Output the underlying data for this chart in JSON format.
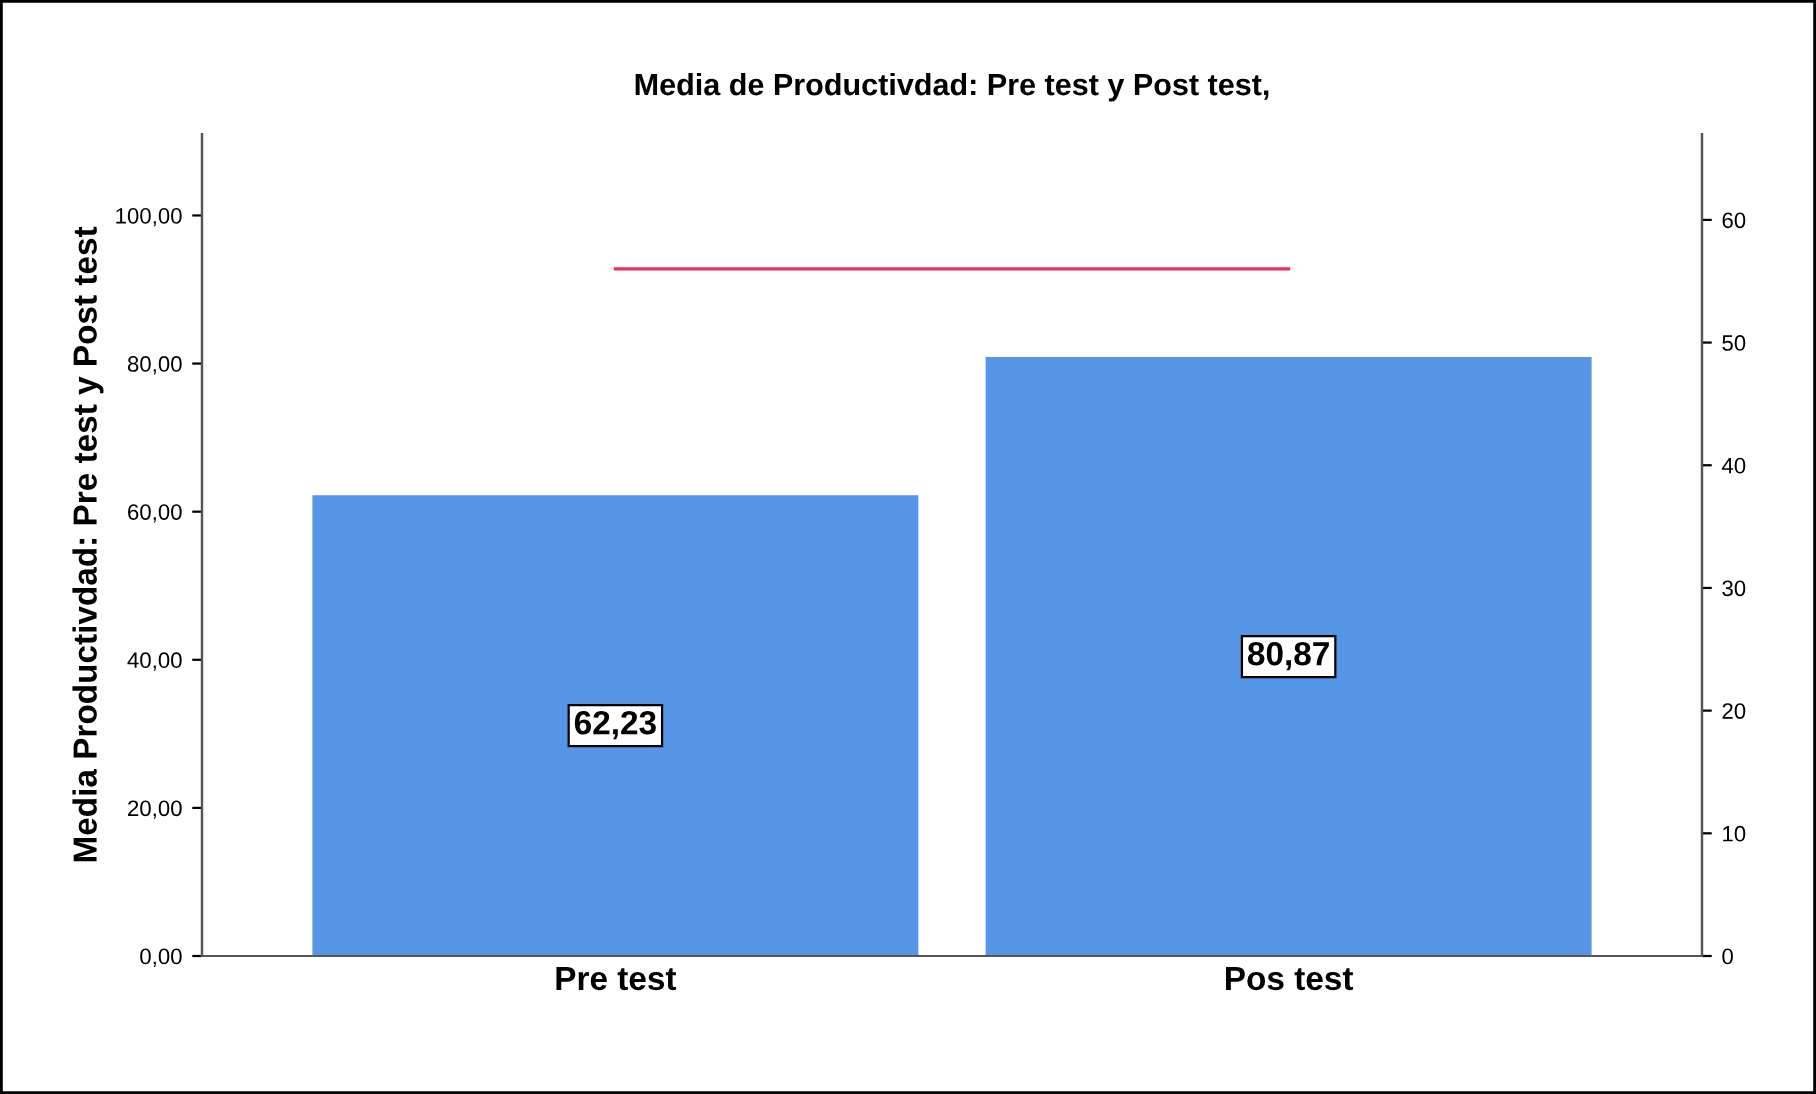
{
  "chart_data": {
    "type": "bar",
    "title": "Media de Productivdad: Pre test y Post test,",
    "ylabel": "Media Productivdad: Pre test y Post test",
    "categories": [
      "Pre test",
      "Pos test"
    ],
    "series": [
      {
        "color": "#5596e6",
        "values": [
          62.23,
          80.87
        ],
        "value_labels": [
          "62,23",
          "80,87"
        ]
      },
      {
        "type": "line",
        "axis": "y2",
        "color": "#e8305a",
        "values": [
          56,
          56
        ]
      }
    ],
    "ylim": [
      0,
      111
    ],
    "yticks": [
      {
        "value": 0,
        "label": "0,00"
      },
      {
        "value": 20,
        "label": "20,00"
      },
      {
        "value": 40,
        "label": "40,00"
      },
      {
        "value": 60,
        "label": "60,00"
      },
      {
        "value": 80,
        "label": "80,00"
      },
      {
        "value": 100,
        "label": "100,00"
      }
    ],
    "y2lim": [
      0,
      67
    ],
    "y2ticks": [
      0,
      10,
      20,
      30,
      40,
      50,
      60
    ],
    "grid": false,
    "legend": false
  }
}
